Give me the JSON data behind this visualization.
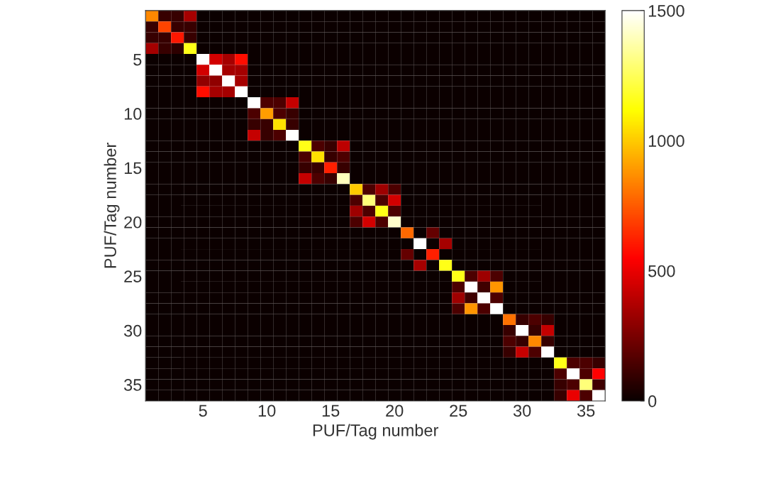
{
  "chart_data": {
    "type": "heatmap",
    "xlabel": "PUF/Tag number",
    "ylabel": "PUF/Tag number",
    "categories": [
      null,
      null,
      null,
      null,
      "5",
      null,
      null,
      null,
      null,
      "10",
      null,
      null,
      null,
      null,
      "15",
      null,
      null,
      null,
      null,
      "20",
      null,
      null,
      null,
      null,
      "25",
      null,
      null,
      null,
      null,
      "30",
      null,
      null,
      null,
      null,
      "35",
      null
    ],
    "y_categories": [
      null,
      null,
      null,
      null,
      "5",
      null,
      null,
      null,
      null,
      "10",
      null,
      null,
      null,
      null,
      "15",
      null,
      null,
      null,
      null,
      "20",
      null,
      null,
      null,
      null,
      "25",
      null,
      null,
      null,
      null,
      "30",
      null,
      null,
      null,
      null,
      "35",
      null
    ],
    "clim": [
      0,
      1500
    ],
    "cticks": [
      0,
      500,
      1000,
      1500
    ],
    "cells": [
      [
        850,
        100,
        100,
        350,
        0,
        0,
        0,
        0,
        0,
        0,
        0,
        0,
        0,
        0,
        0,
        0,
        0,
        0,
        0,
        0,
        0,
        0,
        0,
        0,
        0,
        0,
        0,
        0,
        0,
        0,
        0,
        0,
        0,
        0,
        0,
        0
      ],
      [
        100,
        700,
        100,
        100,
        0,
        0,
        0,
        0,
        0,
        0,
        0,
        0,
        0,
        0,
        0,
        0,
        0,
        0,
        0,
        0,
        0,
        0,
        0,
        0,
        0,
        0,
        0,
        0,
        0,
        0,
        0,
        0,
        0,
        0,
        0,
        0
      ],
      [
        100,
        100,
        600,
        100,
        0,
        0,
        0,
        0,
        0,
        0,
        0,
        0,
        0,
        0,
        0,
        0,
        0,
        0,
        0,
        0,
        0,
        0,
        0,
        0,
        0,
        0,
        0,
        0,
        0,
        0,
        0,
        0,
        0,
        0,
        0,
        0
      ],
      [
        350,
        100,
        80,
        1150,
        0,
        0,
        0,
        0,
        0,
        0,
        0,
        0,
        0,
        0,
        0,
        0,
        0,
        0,
        0,
        0,
        0,
        0,
        0,
        0,
        0,
        0,
        0,
        0,
        0,
        0,
        0,
        0,
        0,
        0,
        0,
        0
      ],
      [
        0,
        0,
        0,
        0,
        1500,
        450,
        350,
        580,
        0,
        0,
        0,
        0,
        0,
        0,
        0,
        0,
        0,
        0,
        0,
        0,
        0,
        0,
        0,
        0,
        0,
        0,
        0,
        0,
        0,
        0,
        0,
        0,
        0,
        0,
        0,
        0
      ],
      [
        0,
        0,
        0,
        0,
        450,
        1500,
        350,
        350,
        0,
        0,
        0,
        0,
        0,
        0,
        0,
        0,
        0,
        0,
        0,
        0,
        0,
        0,
        0,
        0,
        0,
        0,
        0,
        0,
        0,
        0,
        0,
        0,
        0,
        0,
        0,
        0
      ],
      [
        0,
        0,
        0,
        0,
        300,
        300,
        1500,
        350,
        0,
        0,
        0,
        0,
        0,
        0,
        0,
        0,
        0,
        0,
        0,
        0,
        0,
        0,
        0,
        0,
        0,
        0,
        0,
        0,
        0,
        0,
        0,
        0,
        0,
        0,
        0,
        0
      ],
      [
        0,
        0,
        0,
        0,
        580,
        350,
        350,
        1500,
        0,
        0,
        0,
        0,
        0,
        0,
        0,
        0,
        0,
        0,
        0,
        0,
        0,
        0,
        0,
        0,
        0,
        0,
        0,
        0,
        0,
        0,
        0,
        0,
        0,
        0,
        0,
        0
      ],
      [
        0,
        0,
        0,
        0,
        0,
        0,
        0,
        0,
        1500,
        150,
        150,
        420,
        0,
        0,
        0,
        0,
        0,
        0,
        0,
        0,
        0,
        0,
        0,
        0,
        0,
        0,
        0,
        0,
        0,
        0,
        0,
        0,
        0,
        0,
        0,
        0
      ],
      [
        0,
        0,
        0,
        0,
        0,
        0,
        0,
        0,
        150,
        900,
        150,
        100,
        0,
        0,
        0,
        0,
        0,
        0,
        0,
        0,
        0,
        0,
        0,
        0,
        0,
        0,
        0,
        0,
        0,
        0,
        0,
        0,
        0,
        0,
        0,
        0
      ],
      [
        0,
        0,
        0,
        0,
        0,
        0,
        0,
        0,
        100,
        100,
        1050,
        100,
        0,
        0,
        0,
        0,
        0,
        0,
        0,
        0,
        0,
        0,
        0,
        0,
        0,
        0,
        0,
        0,
        0,
        0,
        0,
        0,
        0,
        0,
        0,
        0
      ],
      [
        0,
        0,
        0,
        0,
        0,
        0,
        0,
        0,
        420,
        100,
        150,
        1500,
        0,
        0,
        0,
        0,
        0,
        0,
        0,
        0,
        0,
        0,
        0,
        0,
        0,
        0,
        0,
        0,
        0,
        0,
        0,
        0,
        0,
        0,
        0,
        0
      ],
      [
        0,
        0,
        0,
        0,
        0,
        0,
        0,
        0,
        0,
        0,
        0,
        0,
        1150,
        150,
        100,
        400,
        0,
        0,
        0,
        0,
        0,
        0,
        0,
        0,
        0,
        0,
        0,
        0,
        0,
        0,
        0,
        0,
        0,
        0,
        0,
        0
      ],
      [
        0,
        0,
        0,
        0,
        0,
        0,
        0,
        0,
        0,
        0,
        0,
        0,
        150,
        1050,
        100,
        150,
        0,
        0,
        0,
        0,
        0,
        0,
        0,
        0,
        0,
        0,
        0,
        0,
        0,
        0,
        0,
        0,
        0,
        0,
        0,
        0
      ],
      [
        0,
        0,
        0,
        0,
        0,
        0,
        0,
        0,
        0,
        0,
        0,
        0,
        100,
        100,
        620,
        100,
        0,
        0,
        0,
        0,
        0,
        0,
        0,
        0,
        0,
        0,
        0,
        0,
        0,
        0,
        0,
        0,
        0,
        0,
        0,
        0
      ],
      [
        0,
        0,
        0,
        0,
        0,
        0,
        0,
        0,
        0,
        0,
        0,
        0,
        420,
        150,
        100,
        1400,
        0,
        0,
        0,
        0,
        0,
        0,
        0,
        0,
        0,
        0,
        0,
        0,
        0,
        0,
        0,
        0,
        0,
        0,
        0,
        0
      ],
      [
        0,
        0,
        0,
        0,
        0,
        0,
        0,
        0,
        0,
        0,
        0,
        0,
        0,
        0,
        0,
        0,
        1000,
        150,
        330,
        150,
        0,
        0,
        0,
        0,
        0,
        0,
        0,
        0,
        0,
        0,
        0,
        0,
        0,
        0,
        0,
        0
      ],
      [
        0,
        0,
        0,
        0,
        0,
        0,
        0,
        0,
        0,
        0,
        0,
        0,
        0,
        0,
        0,
        0,
        150,
        1300,
        150,
        450,
        0,
        0,
        0,
        0,
        0,
        0,
        0,
        0,
        0,
        0,
        0,
        0,
        0,
        0,
        0,
        0
      ],
      [
        0,
        0,
        0,
        0,
        0,
        0,
        0,
        0,
        0,
        0,
        0,
        0,
        0,
        0,
        0,
        0,
        330,
        150,
        1150,
        150,
        0,
        0,
        0,
        0,
        0,
        0,
        0,
        0,
        0,
        0,
        0,
        0,
        0,
        0,
        0,
        0
      ],
      [
        0,
        0,
        0,
        0,
        0,
        0,
        0,
        0,
        0,
        0,
        0,
        0,
        0,
        0,
        0,
        0,
        150,
        450,
        150,
        1420,
        0,
        0,
        0,
        0,
        0,
        0,
        0,
        0,
        0,
        0,
        0,
        0,
        0,
        0,
        0,
        0
      ],
      [
        0,
        0,
        0,
        0,
        0,
        0,
        0,
        0,
        0,
        0,
        0,
        0,
        0,
        0,
        0,
        0,
        0,
        0,
        0,
        0,
        780,
        0,
        200,
        0,
        0,
        0,
        0,
        0,
        0,
        0,
        0,
        0,
        0,
        0,
        0,
        0
      ],
      [
        0,
        0,
        0,
        0,
        0,
        0,
        0,
        0,
        0,
        0,
        0,
        0,
        0,
        0,
        0,
        0,
        0,
        0,
        0,
        0,
        0,
        1500,
        0,
        350,
        0,
        0,
        0,
        0,
        0,
        0,
        0,
        0,
        0,
        0,
        0,
        0
      ],
      [
        0,
        0,
        0,
        0,
        0,
        0,
        0,
        0,
        0,
        0,
        0,
        0,
        0,
        0,
        0,
        0,
        0,
        0,
        0,
        0,
        200,
        0,
        620,
        0,
        0,
        0,
        0,
        0,
        0,
        0,
        0,
        0,
        0,
        0,
        0,
        0
      ],
      [
        0,
        0,
        0,
        0,
        0,
        0,
        0,
        0,
        0,
        0,
        0,
        0,
        0,
        0,
        0,
        0,
        0,
        0,
        0,
        0,
        0,
        350,
        0,
        1150,
        0,
        0,
        0,
        0,
        0,
        0,
        0,
        0,
        0,
        0,
        0,
        0
      ],
      [
        0,
        0,
        0,
        0,
        0,
        0,
        0,
        0,
        0,
        0,
        0,
        0,
        0,
        0,
        0,
        0,
        0,
        0,
        0,
        0,
        0,
        0,
        0,
        0,
        1150,
        150,
        330,
        150,
        0,
        0,
        0,
        0,
        0,
        0,
        0,
        0
      ],
      [
        0,
        0,
        0,
        0,
        0,
        0,
        0,
        0,
        0,
        0,
        0,
        0,
        0,
        0,
        0,
        0,
        0,
        0,
        0,
        0,
        0,
        0,
        0,
        0,
        150,
        1500,
        120,
        880,
        0,
        0,
        0,
        0,
        0,
        0,
        0,
        0
      ],
      [
        0,
        0,
        0,
        0,
        0,
        0,
        0,
        0,
        0,
        0,
        0,
        0,
        0,
        0,
        0,
        0,
        0,
        0,
        0,
        0,
        0,
        0,
        0,
        0,
        330,
        120,
        1500,
        150,
        0,
        0,
        0,
        0,
        0,
        0,
        0,
        0
      ],
      [
        0,
        0,
        0,
        0,
        0,
        0,
        0,
        0,
        0,
        0,
        0,
        0,
        0,
        0,
        0,
        0,
        0,
        0,
        0,
        0,
        0,
        0,
        0,
        0,
        150,
        880,
        150,
        1500,
        0,
        0,
        0,
        0,
        0,
        0,
        0,
        0
      ],
      [
        0,
        0,
        0,
        0,
        0,
        0,
        0,
        0,
        0,
        0,
        0,
        0,
        0,
        0,
        0,
        0,
        0,
        0,
        0,
        0,
        0,
        0,
        0,
        0,
        0,
        0,
        0,
        0,
        800,
        100,
        150,
        100,
        0,
        0,
        0,
        0
      ],
      [
        0,
        0,
        0,
        0,
        0,
        0,
        0,
        0,
        0,
        0,
        0,
        0,
        0,
        0,
        0,
        0,
        0,
        0,
        0,
        0,
        0,
        0,
        0,
        0,
        0,
        0,
        0,
        0,
        100,
        1500,
        100,
        420,
        0,
        0,
        0,
        0
      ],
      [
        0,
        0,
        0,
        0,
        0,
        0,
        0,
        0,
        0,
        0,
        0,
        0,
        0,
        0,
        0,
        0,
        0,
        0,
        0,
        0,
        0,
        0,
        0,
        0,
        0,
        0,
        0,
        0,
        150,
        100,
        850,
        100,
        0,
        0,
        0,
        0
      ],
      [
        0,
        0,
        0,
        0,
        0,
        0,
        0,
        0,
        0,
        0,
        0,
        0,
        0,
        0,
        0,
        0,
        0,
        0,
        0,
        0,
        0,
        0,
        0,
        0,
        0,
        0,
        0,
        0,
        100,
        420,
        150,
        1500,
        0,
        0,
        0,
        0
      ],
      [
        0,
        0,
        0,
        0,
        0,
        0,
        0,
        0,
        0,
        0,
        0,
        0,
        0,
        0,
        0,
        0,
        0,
        0,
        0,
        0,
        0,
        0,
        0,
        0,
        0,
        0,
        0,
        0,
        0,
        0,
        0,
        0,
        1150,
        150,
        150,
        100
      ],
      [
        0,
        0,
        0,
        0,
        0,
        0,
        0,
        0,
        0,
        0,
        0,
        0,
        0,
        0,
        0,
        0,
        0,
        0,
        0,
        0,
        0,
        0,
        0,
        0,
        0,
        0,
        0,
        0,
        0,
        0,
        0,
        0,
        150,
        1500,
        150,
        550
      ],
      [
        0,
        0,
        0,
        0,
        0,
        0,
        0,
        0,
        0,
        0,
        0,
        0,
        0,
        0,
        0,
        0,
        0,
        0,
        0,
        0,
        0,
        0,
        0,
        0,
        0,
        0,
        0,
        0,
        0,
        0,
        0,
        0,
        100,
        150,
        1300,
        120
      ],
      [
        0,
        0,
        0,
        0,
        0,
        0,
        0,
        0,
        0,
        0,
        0,
        0,
        0,
        0,
        0,
        0,
        0,
        0,
        0,
        0,
        0,
        0,
        0,
        0,
        0,
        0,
        0,
        0,
        0,
        0,
        0,
        0,
        100,
        500,
        150,
        1500
      ]
    ]
  }
}
